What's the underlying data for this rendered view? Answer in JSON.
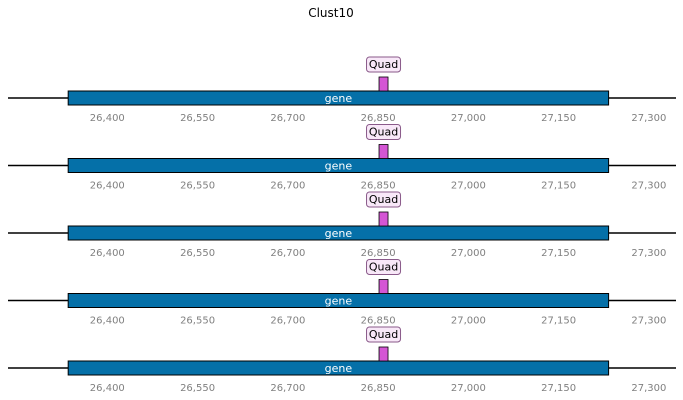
{
  "title": "Clust10",
  "colors": {
    "gene_fill": "#0570a8",
    "feature_fill": "#d456d4",
    "label_box_fill": "#f8e8f8",
    "label_box_stroke": "#8a5a8a",
    "axis_line": "#000000",
    "tick_text": "#808080"
  },
  "x_range": [
    26235,
    27345
  ],
  "tick_values": [
    26400,
    26550,
    26700,
    26850,
    27000,
    27150,
    27300
  ],
  "tick_labels": [
    "26,400",
    "26,550",
    "26,700",
    "26,850",
    "27,000",
    "27,150",
    "27,300"
  ],
  "tracks": [
    {
      "gene": {
        "label": "gene",
        "start": 26335,
        "end": 27233
      },
      "feature": {
        "label": "Quad",
        "start": 26851,
        "end": 26867
      }
    },
    {
      "gene": {
        "label": "gene",
        "start": 26335,
        "end": 27233
      },
      "feature": {
        "label": "Quad",
        "start": 26851,
        "end": 26867
      }
    },
    {
      "gene": {
        "label": "gene",
        "start": 26335,
        "end": 27233
      },
      "feature": {
        "label": "Quad",
        "start": 26851,
        "end": 26867
      }
    },
    {
      "gene": {
        "label": "gene",
        "start": 26335,
        "end": 27233
      },
      "feature": {
        "label": "Quad",
        "start": 26851,
        "end": 26867
      }
    },
    {
      "gene": {
        "label": "gene",
        "start": 26335,
        "end": 27233
      },
      "feature": {
        "label": "Quad",
        "start": 26851,
        "end": 26867
      }
    }
  ]
}
